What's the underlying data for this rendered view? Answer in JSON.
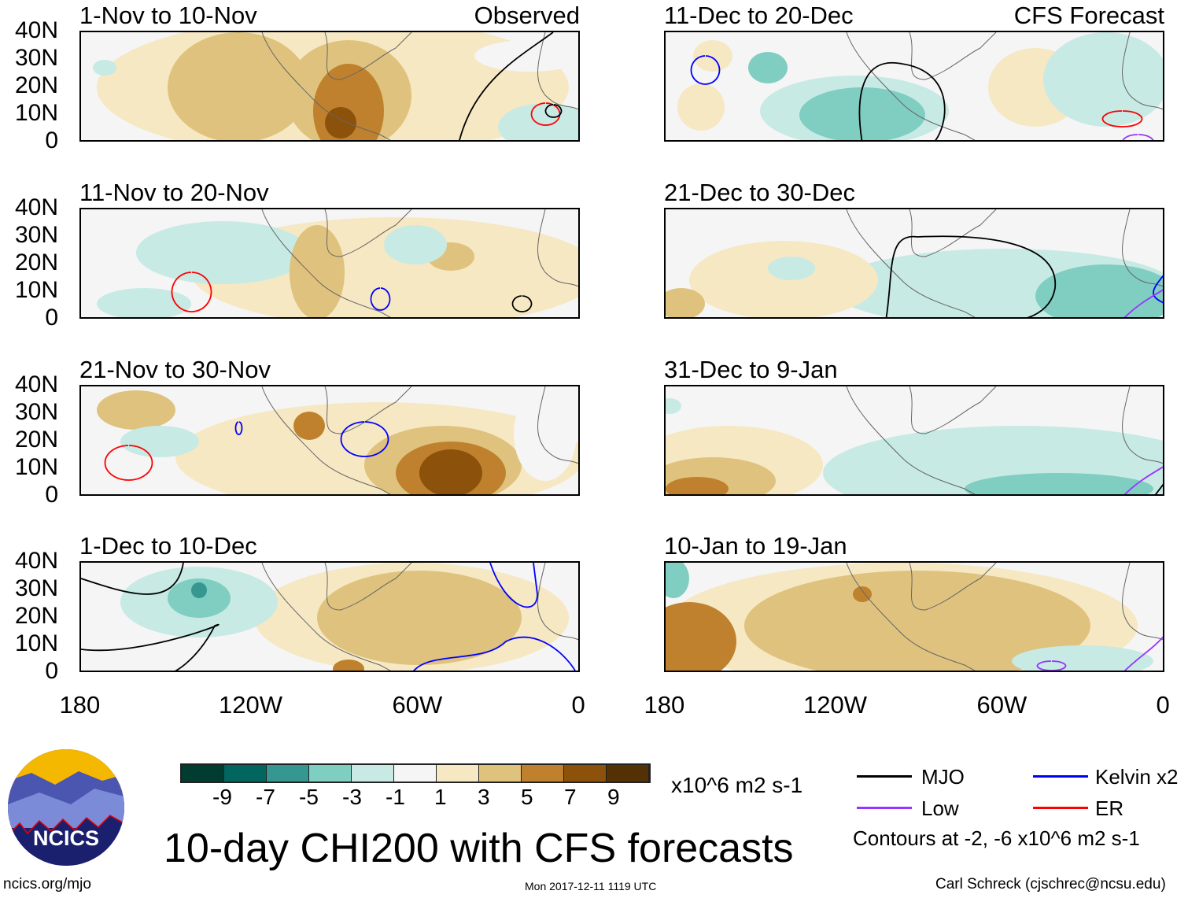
{
  "panels": [
    {
      "title": "1-Nov to 10-Nov",
      "tag": "Observed"
    },
    {
      "title": "11-Nov to 20-Nov"
    },
    {
      "title": "21-Nov to 30-Nov"
    },
    {
      "title": "1-Dec to 10-Dec"
    },
    {
      "title": "11-Dec to 20-Dec",
      "tag": "CFS Forecast"
    },
    {
      "title": "21-Dec to 30-Dec"
    },
    {
      "title": "31-Dec to 9-Jan"
    },
    {
      "title": "10-Jan to 19-Jan"
    }
  ],
  "lat_labels": [
    "40N",
    "30N",
    "20N",
    "10N",
    "0"
  ],
  "lon_labels": [
    "180",
    "120W",
    "60W",
    "0"
  ],
  "colorbar": {
    "labels": [
      "-9",
      "-7",
      "-5",
      "-3",
      "-1",
      "1",
      "3",
      "5",
      "7",
      "9"
    ],
    "colors": [
      "#003c30",
      "#01665e",
      "#35978f",
      "#80cdc1",
      "#c7eae5",
      "#f5f5f5",
      "#f6e8c3",
      "#dfc27d",
      "#bf812d",
      "#8c510a",
      "#543005"
    ],
    "units": "x10^6 m2 s-1"
  },
  "legend": {
    "mjo": "MJO",
    "kelvin": "Kelvin x2",
    "low": "Low",
    "er": "ER",
    "note": "Contours at -2, -6 x10^6 m2 s-1",
    "colors": {
      "mjo": "#000000",
      "kelvin": "#0000ff",
      "low": "#9933ff",
      "er": "#ff0000"
    }
  },
  "title": "10-day CHI200 with CFS forecasts",
  "logo": "NCICS",
  "footer": {
    "url": "ncics.org/mjo",
    "timestamp": "Mon 2017-12-11 1119 UTC",
    "author": "Carl Schreck (cjschrec@ncsu.edu)"
  }
}
